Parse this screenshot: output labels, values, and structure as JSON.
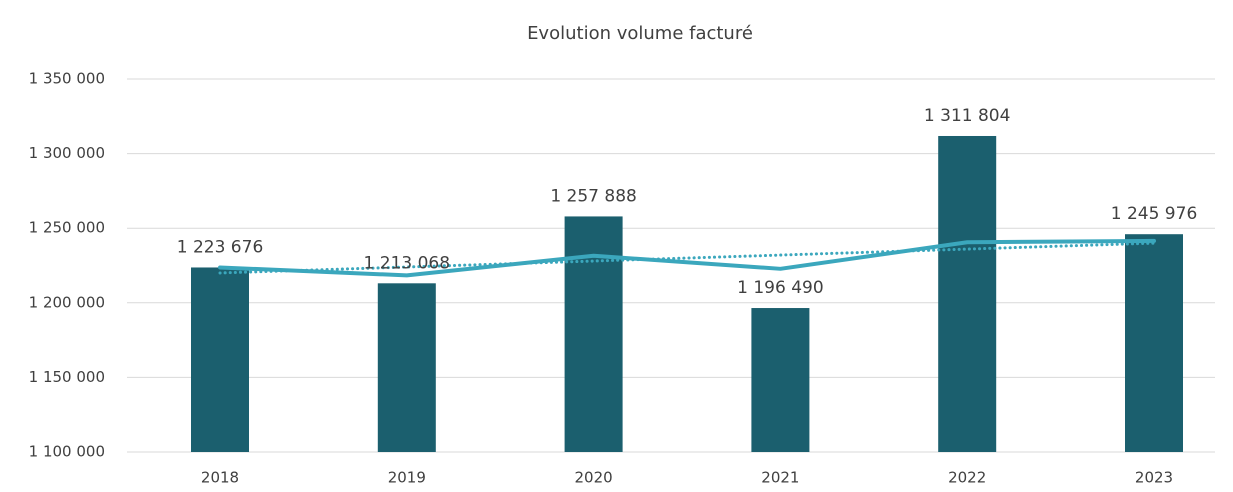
{
  "chart_data": {
    "type": "bar",
    "title": "Evolution volume facturé",
    "categories": [
      "2018",
      "2019",
      "2020",
      "2021",
      "2022",
      "2023"
    ],
    "values": [
      1223676,
      1213068,
      1257888,
      1196490,
      1311804,
      1245976
    ],
    "value_labels": [
      "1 223 676",
      "1 213 068",
      "1 257 888",
      "1 196 490",
      "1 311 804",
      "1 245 976"
    ],
    "color": "#1b5f6e",
    "series": [
      {
        "color": "#3ba7bd",
        "style": "solid",
        "values": [
          1223676,
          1218372,
          1231544,
          1222780,
          1240585,
          1241483
        ]
      },
      {
        "color": "#3ba7bd",
        "style": "dotted",
        "values": [
          1220000,
          1224000,
          1228000,
          1232000,
          1236000,
          1240000
        ]
      }
    ],
    "ylim": [
      1100000,
      1350000
    ],
    "yticks": [
      {
        "value": 1100000,
        "label": "1 100 000"
      },
      {
        "value": 1150000,
        "label": "1 150 000"
      },
      {
        "value": 1200000,
        "label": "1 200 000"
      },
      {
        "value": 1250000,
        "label": "1 250 000"
      },
      {
        "value": 1300000,
        "label": "1 300 000"
      },
      {
        "value": 1350000,
        "label": "1 350 000"
      }
    ],
    "grid": true
  }
}
